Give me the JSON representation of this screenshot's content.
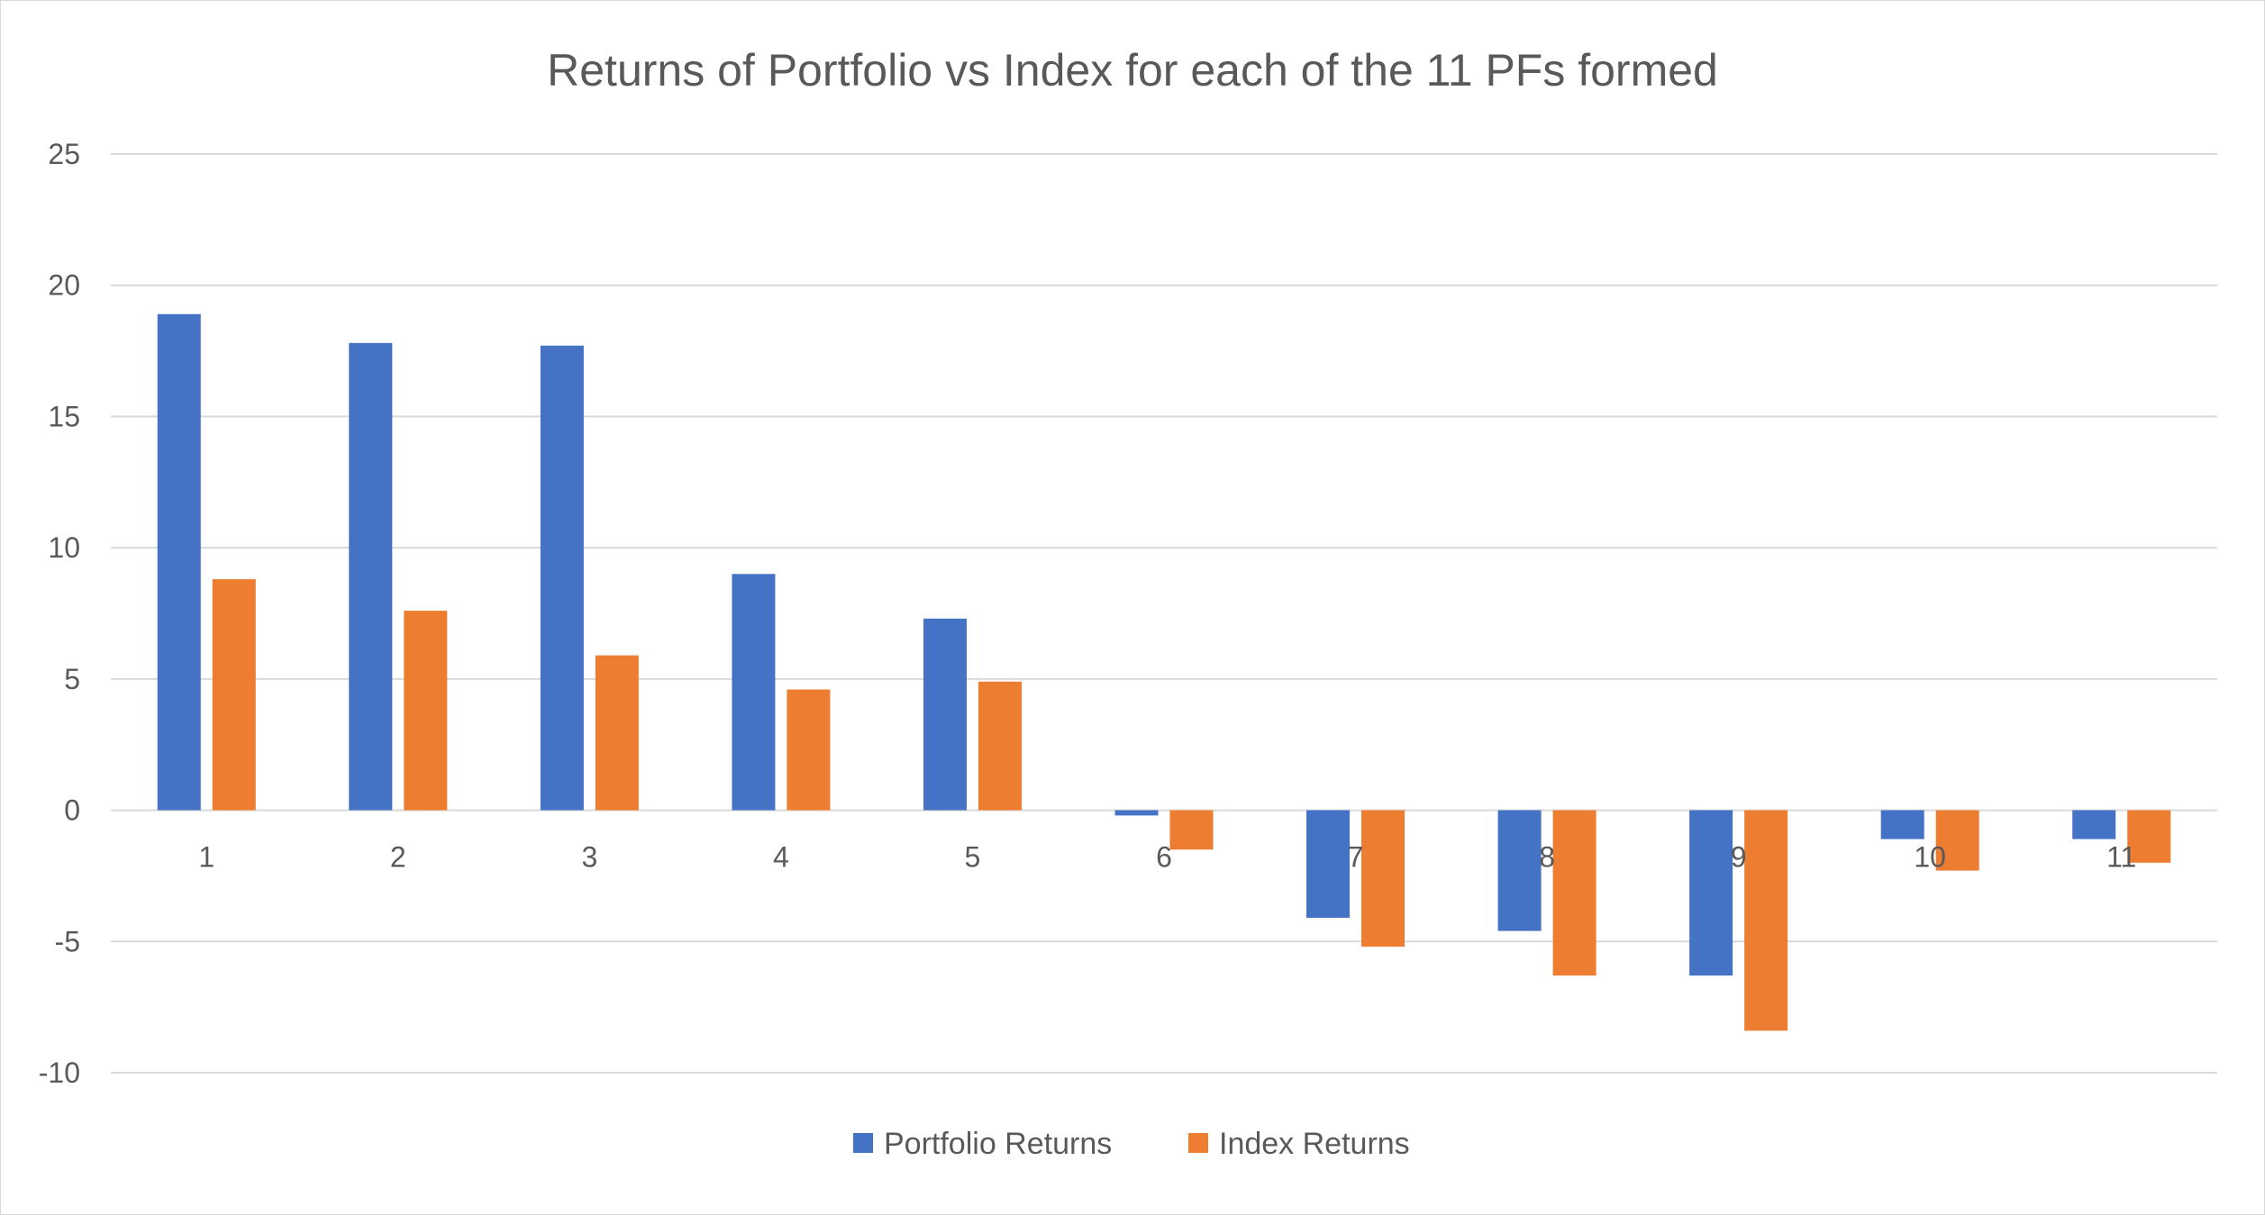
{
  "chart_data": {
    "type": "bar",
    "title": "Returns of Portfolio vs Index for each of the 11 PFs formed",
    "xlabel": "",
    "ylabel": "",
    "categories": [
      "1",
      "2",
      "3",
      "4",
      "5",
      "6",
      "7",
      "8",
      "9",
      "10",
      "11"
    ],
    "series": [
      {
        "name": "Portfolio Returns",
        "color": "#4472C4",
        "values": [
          18.9,
          17.8,
          17.7,
          9.0,
          7.3,
          -0.2,
          -4.1,
          -4.6,
          -6.3,
          -1.1,
          -1.1
        ]
      },
      {
        "name": "Index Returns",
        "color": "#ED7D31",
        "values": [
          8.8,
          7.6,
          5.9,
          4.6,
          4.9,
          -1.5,
          -5.2,
          -6.3,
          -8.4,
          -2.3,
          -2.0
        ]
      }
    ],
    "ylim": [
      -10,
      25
    ],
    "yticks": [
      25,
      20,
      15,
      10,
      5,
      0,
      -5,
      -10
    ],
    "ytick_labels": [
      "25",
      "20",
      "15",
      "10",
      "5",
      "0",
      "-5",
      "-10"
    ],
    "grid": true,
    "legend_position": "bottom",
    "gridline_color": "#d9d9d9",
    "text_color": "#595959"
  }
}
